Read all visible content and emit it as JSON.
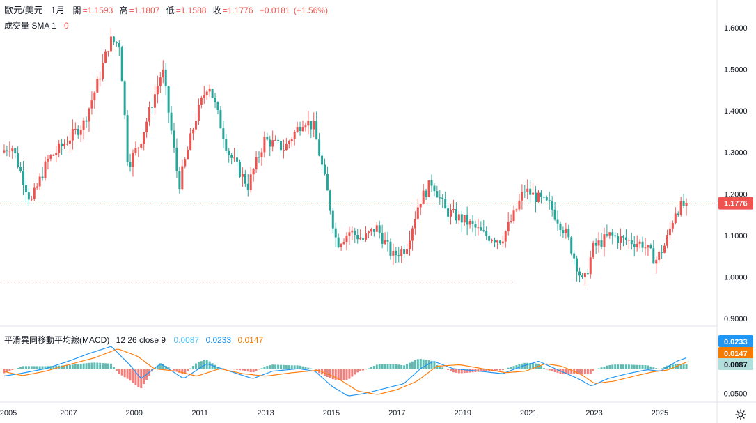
{
  "header": {
    "symbol": "歐元/美元",
    "interval": "1月",
    "open_label": "開",
    "open": "=1.1593",
    "high_label": "高",
    "high": "=1.1807",
    "low_label": "低",
    "low": "=1.1588",
    "close_label": "收",
    "close": "=1.1776",
    "change": "+0.0181",
    "change_pct": "(+1.56%)"
  },
  "volume_legend": {
    "label": "成交量 SMA 1",
    "value": "0"
  },
  "macd_legend": {
    "title": "平滑異同移動平均線(MACD)",
    "params": "12 26 close 9",
    "v1": "0.0087",
    "v2": "0.0233",
    "v3": "0.0147"
  },
  "colors": {
    "up": "#ef5350",
    "down": "#26a69a",
    "hist_pos": "#80cbc4",
    "hist_neg": "#ef9a9a",
    "macd_line": "#2196f3",
    "signal_line": "#ff7f0e",
    "last_price_bg": "#ef5350"
  },
  "chart_data": {
    "type": "candlestick",
    "title": "歐元/美元 1月",
    "price_axis": {
      "ylim": [
        0.885,
        1.64
      ],
      "ticks": [
        "1.6000",
        "1.5000",
        "1.4000",
        "1.3000",
        "1.2000",
        "1.1000",
        "1.0000",
        "0.9000"
      ]
    },
    "time_axis": {
      "range_years": [
        2005.0,
        2025.85
      ],
      "ticks": [
        "2005",
        "2007",
        "2009",
        "2011",
        "2013",
        "2015",
        "2017",
        "2019",
        "2021",
        "2023",
        "2025"
      ]
    },
    "last_price": "1.1776",
    "price_path": [
      [
        2005.0,
        1.3
      ],
      [
        2005.3,
        1.32
      ],
      [
        2005.9,
        1.18
      ],
      [
        2006.4,
        1.28
      ],
      [
        2006.9,
        1.32
      ],
      [
        2007.5,
        1.37
      ],
      [
        2007.9,
        1.46
      ],
      [
        2008.3,
        1.57
      ],
      [
        2008.6,
        1.56
      ],
      [
        2008.85,
        1.27
      ],
      [
        2009.2,
        1.32
      ],
      [
        2009.9,
        1.5
      ],
      [
        2010.4,
        1.22
      ],
      [
        2010.9,
        1.38
      ],
      [
        2011.3,
        1.47
      ],
      [
        2011.9,
        1.3
      ],
      [
        2012.5,
        1.22
      ],
      [
        2013.0,
        1.33
      ],
      [
        2013.6,
        1.31
      ],
      [
        2014.2,
        1.38
      ],
      [
        2014.5,
        1.36
      ],
      [
        2014.9,
        1.21
      ],
      [
        2015.2,
        1.08
      ],
      [
        2015.6,
        1.11
      ],
      [
        2016.0,
        1.09
      ],
      [
        2016.4,
        1.12
      ],
      [
        2016.9,
        1.05
      ],
      [
        2017.3,
        1.07
      ],
      [
        2017.7,
        1.18
      ],
      [
        2018.1,
        1.23
      ],
      [
        2018.5,
        1.16
      ],
      [
        2019.2,
        1.13
      ],
      [
        2019.7,
        1.1
      ],
      [
        2020.2,
        1.09
      ],
      [
        2020.6,
        1.15
      ],
      [
        2020.9,
        1.21
      ],
      [
        2021.3,
        1.19
      ],
      [
        2021.7,
        1.17
      ],
      [
        2022.2,
        1.1
      ],
      [
        2022.7,
        0.98
      ],
      [
        2023.0,
        1.07
      ],
      [
        2023.5,
        1.1
      ],
      [
        2023.9,
        1.09
      ],
      [
        2024.5,
        1.08
      ],
      [
        2024.9,
        1.04
      ],
      [
        2025.2,
        1.08
      ],
      [
        2025.5,
        1.16
      ],
      [
        2025.85,
        1.1776
      ]
    ],
    "macd_axis": {
      "ylim": [
        -0.063,
        0.045
      ],
      "ticks": [
        "-0.0500"
      ]
    },
    "macd_path": [
      [
        2005.0,
        -0.015
      ],
      [
        2005.5,
        -0.01
      ],
      [
        2006.3,
        0.0
      ],
      [
        2007.0,
        0.015
      ],
      [
        2007.6,
        0.03
      ],
      [
        2008.3,
        0.045
      ],
      [
        2008.9,
        0.005
      ],
      [
        2009.2,
        -0.02
      ],
      [
        2009.8,
        0.01
      ],
      [
        2010.5,
        -0.02
      ],
      [
        2011.2,
        0.01
      ],
      [
        2011.9,
        -0.005
      ],
      [
        2012.6,
        -0.02
      ],
      [
        2013.2,
        -0.005
      ],
      [
        2014.0,
        0.0
      ],
      [
        2014.5,
        -0.005
      ],
      [
        2015.0,
        -0.035
      ],
      [
        2015.5,
        -0.055
      ],
      [
        2016.0,
        -0.05
      ],
      [
        2016.6,
        -0.04
      ],
      [
        2017.2,
        -0.03
      ],
      [
        2017.7,
        0.0
      ],
      [
        2018.1,
        0.015
      ],
      [
        2018.7,
        0.0
      ],
      [
        2019.5,
        -0.005
      ],
      [
        2020.2,
        -0.01
      ],
      [
        2020.8,
        0.005
      ],
      [
        2021.3,
        0.015
      ],
      [
        2021.8,
        0.0
      ],
      [
        2022.5,
        -0.02
      ],
      [
        2022.9,
        -0.035
      ],
      [
        2023.4,
        -0.02
      ],
      [
        2024.0,
        -0.01
      ],
      [
        2024.6,
        -0.002
      ],
      [
        2025.0,
        -0.005
      ],
      [
        2025.5,
        0.015
      ],
      [
        2025.85,
        0.0233
      ]
    ],
    "signal_path": [
      [
        2005.0,
        -0.005
      ],
      [
        2005.6,
        -0.014
      ],
      [
        2006.3,
        -0.005
      ],
      [
        2007.0,
        0.008
      ],
      [
        2007.8,
        0.022
      ],
      [
        2008.5,
        0.04
      ],
      [
        2009.1,
        0.025
      ],
      [
        2009.6,
        0.0
      ],
      [
        2010.3,
        -0.005
      ],
      [
        2010.9,
        -0.015
      ],
      [
        2011.6,
        0.0
      ],
      [
        2012.3,
        -0.01
      ],
      [
        2013.0,
        -0.015
      ],
      [
        2013.8,
        -0.008
      ],
      [
        2014.6,
        -0.003
      ],
      [
        2015.2,
        -0.02
      ],
      [
        2015.8,
        -0.045
      ],
      [
        2016.4,
        -0.052
      ],
      [
        2017.0,
        -0.042
      ],
      [
        2017.6,
        -0.025
      ],
      [
        2018.2,
        0.005
      ],
      [
        2018.9,
        0.008
      ],
      [
        2019.6,
        0.0
      ],
      [
        2020.3,
        -0.008
      ],
      [
        2020.9,
        -0.005
      ],
      [
        2021.5,
        0.01
      ],
      [
        2022.0,
        0.005
      ],
      [
        2022.6,
        -0.012
      ],
      [
        2023.0,
        -0.03
      ],
      [
        2023.6,
        -0.025
      ],
      [
        2024.2,
        -0.015
      ],
      [
        2024.8,
        -0.006
      ],
      [
        2025.2,
        -0.003
      ],
      [
        2025.85,
        0.0147
      ]
    ],
    "histogram_last": "0.0087"
  }
}
